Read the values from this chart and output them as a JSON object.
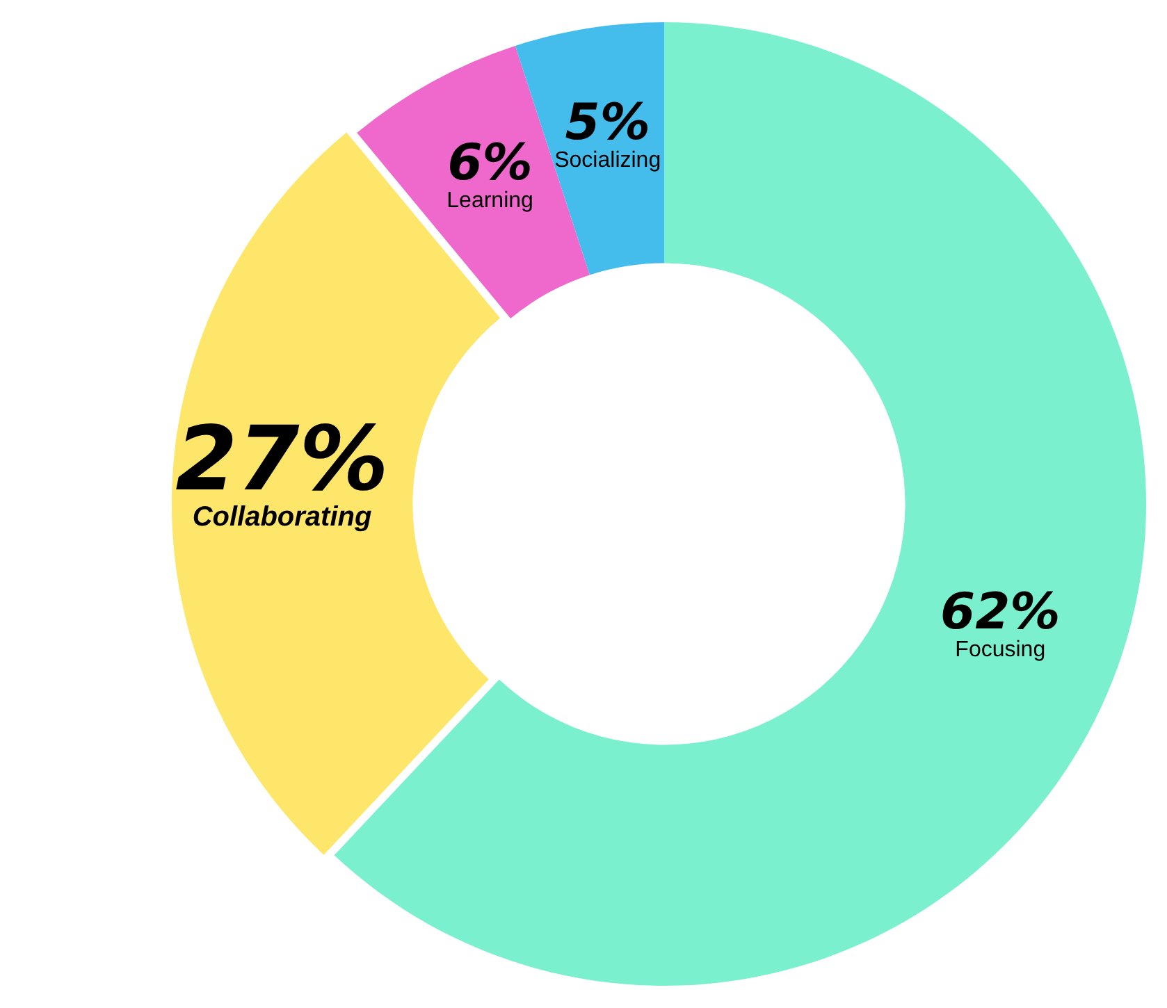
{
  "chart_data": {
    "type": "donut",
    "categories": [
      "Focusing",
      "Collaborating",
      "Learning",
      "Socializing"
    ],
    "values": [
      62,
      27,
      6,
      5
    ],
    "colors": [
      "#7af0ce",
      "#fee66b",
      "#ef68cb",
      "#45bdec"
    ],
    "value_labels": [
      "62%",
      "27%",
      "6%",
      "5%"
    ]
  }
}
